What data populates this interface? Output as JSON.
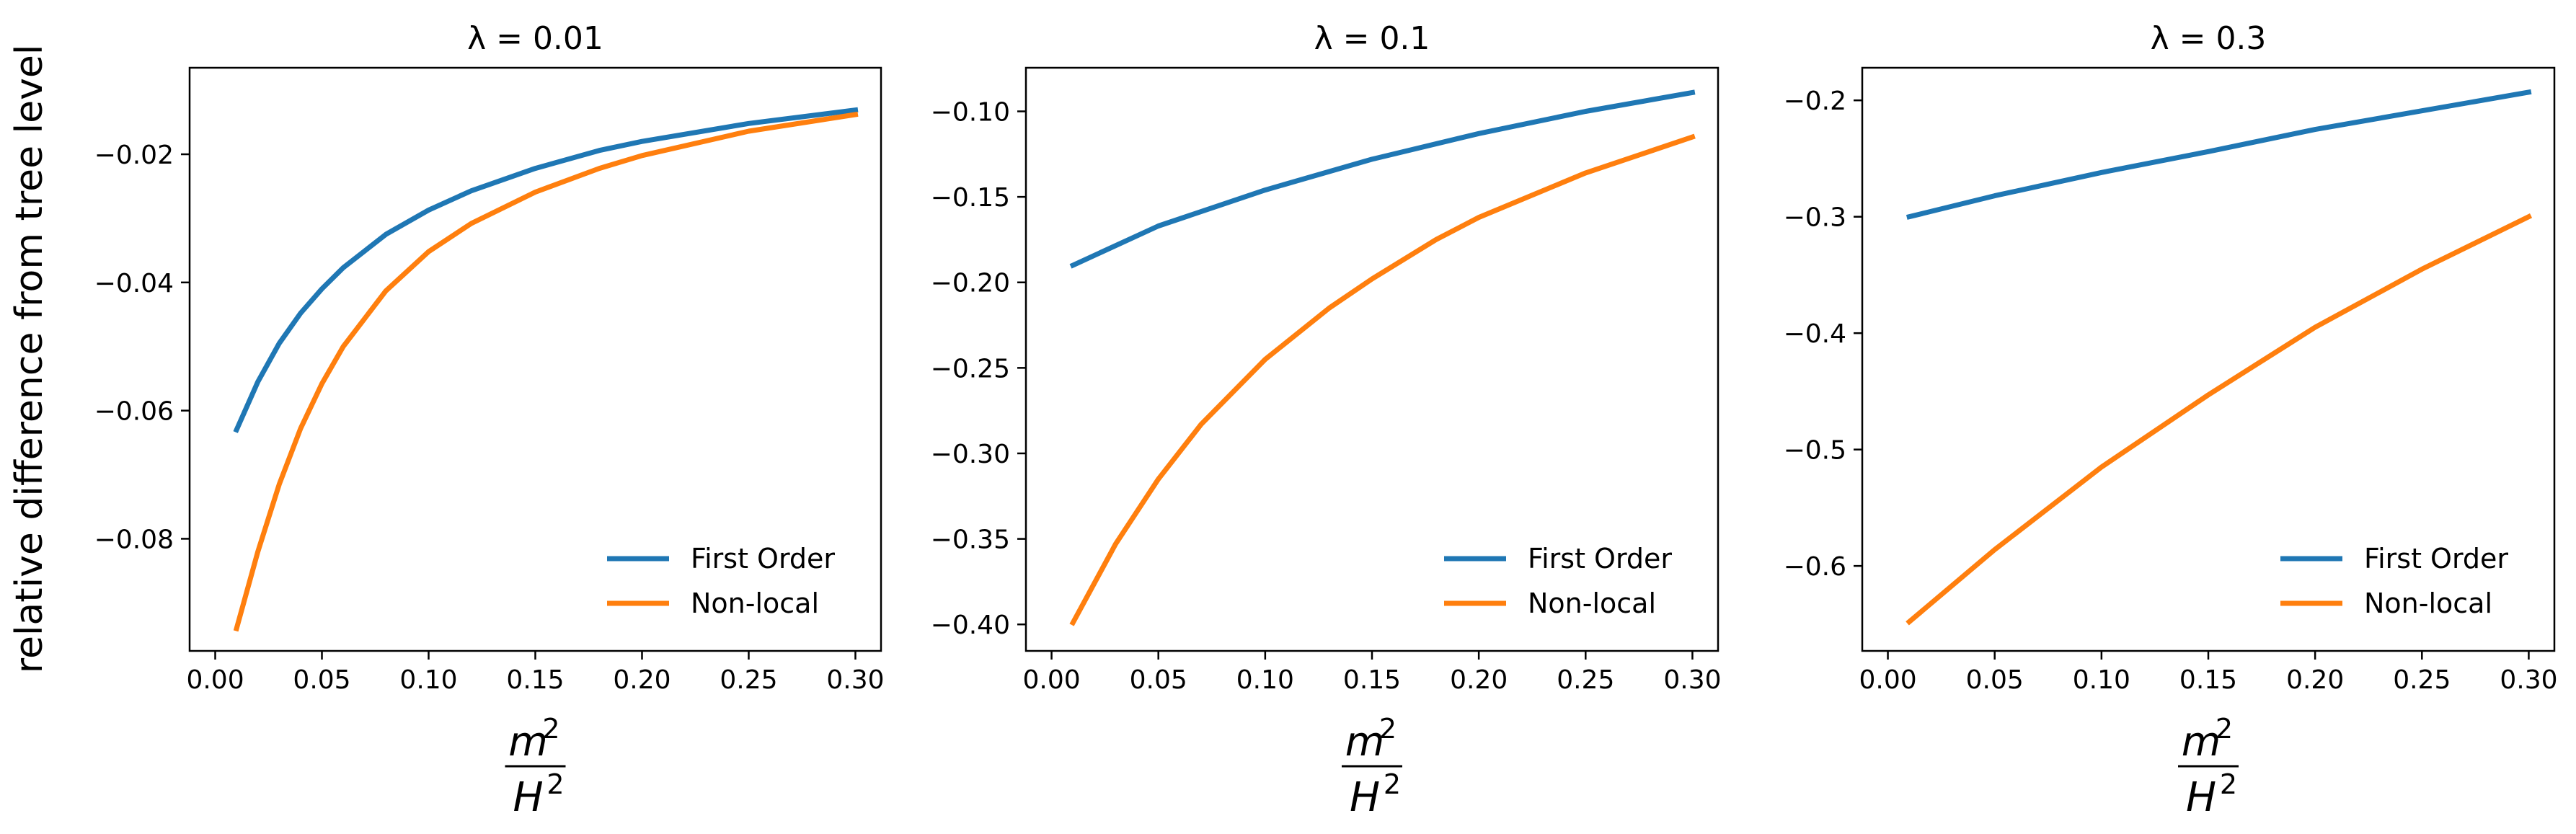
{
  "figure": {
    "ylabel": "relative difference from tree level",
    "xlabel": {
      "numerator": "m",
      "denominator": "H",
      "exponent": "2"
    },
    "colors": {
      "first_order": "#1f77b4",
      "non_local": "#ff7f0e",
      "axes": "#000000"
    }
  },
  "chart_data": [
    {
      "type": "line",
      "title": "λ = 0.01",
      "xlim": [
        -0.012,
        0.312
      ],
      "ylim": [
        -0.0975,
        -0.0065
      ],
      "xticks": [
        0.0,
        0.05,
        0.1,
        0.15,
        0.2,
        0.25,
        0.3
      ],
      "xtick_labels": [
        "0.00",
        "0.05",
        "0.10",
        "0.15",
        "0.20",
        "0.25",
        "0.30"
      ],
      "yticks": [
        -0.08,
        -0.06,
        -0.04,
        -0.02
      ],
      "ytick_labels": [
        "−0.08",
        "−0.06",
        "−0.04",
        "−0.02"
      ],
      "legend": "lower right",
      "series": [
        {
          "name": "First Order",
          "color": "#1f77b4",
          "x": [
            0.01,
            0.02,
            0.03,
            0.04,
            0.05,
            0.06,
            0.08,
            0.1,
            0.12,
            0.15,
            0.18,
            0.2,
            0.25,
            0.3
          ],
          "y": [
            -0.063,
            -0.0555,
            -0.0495,
            -0.0448,
            -0.041,
            -0.0377,
            -0.0325,
            -0.0287,
            -0.0257,
            -0.0222,
            -0.0194,
            -0.018,
            -0.0152,
            -0.0131
          ]
        },
        {
          "name": "Non-local",
          "color": "#ff7f0e",
          "x": [
            0.01,
            0.02,
            0.03,
            0.04,
            0.05,
            0.06,
            0.08,
            0.1,
            0.12,
            0.15,
            0.18,
            0.2,
            0.25,
            0.3
          ],
          "y": [
            -0.094,
            -0.082,
            -0.0715,
            -0.0628,
            -0.0558,
            -0.05,
            -0.0413,
            -0.0352,
            -0.0308,
            -0.0259,
            -0.0222,
            -0.0202,
            -0.0164,
            -0.0138
          ]
        }
      ]
    },
    {
      "type": "line",
      "title": "λ = 0.1",
      "xlim": [
        -0.012,
        0.312
      ],
      "ylim": [
        -0.4155,
        -0.0745
      ],
      "xticks": [
        0.0,
        0.05,
        0.1,
        0.15,
        0.2,
        0.25,
        0.3
      ],
      "xtick_labels": [
        "0.00",
        "0.05",
        "0.10",
        "0.15",
        "0.20",
        "0.25",
        "0.30"
      ],
      "yticks": [
        -0.4,
        -0.35,
        -0.3,
        -0.25,
        -0.2,
        -0.15,
        -0.1
      ],
      "ytick_labels": [
        "−0.40",
        "−0.35",
        "−0.30",
        "−0.25",
        "−0.20",
        "−0.15",
        "−0.10"
      ],
      "legend": "lower right",
      "series": [
        {
          "name": "First Order",
          "color": "#1f77b4",
          "x": [
            0.01,
            0.05,
            0.1,
            0.15,
            0.2,
            0.25,
            0.3
          ],
          "y": [
            -0.19,
            -0.167,
            -0.146,
            -0.128,
            -0.113,
            -0.1,
            -0.089
          ]
        },
        {
          "name": "Non-local",
          "color": "#ff7f0e",
          "x": [
            0.01,
            0.03,
            0.05,
            0.07,
            0.1,
            0.13,
            0.15,
            0.18,
            0.2,
            0.25,
            0.3
          ],
          "y": [
            -0.399,
            -0.353,
            -0.315,
            -0.283,
            -0.245,
            -0.215,
            -0.198,
            -0.175,
            -0.162,
            -0.136,
            -0.115
          ]
        }
      ]
    },
    {
      "type": "line",
      "title": "λ = 0.3",
      "xlim": [
        -0.012,
        0.312
      ],
      "ylim": [
        -0.673,
        -0.172
      ],
      "xticks": [
        0.0,
        0.05,
        0.1,
        0.15,
        0.2,
        0.25,
        0.3
      ],
      "xtick_labels": [
        "0.00",
        "0.05",
        "0.10",
        "0.15",
        "0.20",
        "0.25",
        "0.30"
      ],
      "yticks": [
        -0.6,
        -0.5,
        -0.4,
        -0.3,
        -0.2
      ],
      "ytick_labels": [
        "−0.6",
        "−0.5",
        "−0.4",
        "−0.3",
        "−0.2"
      ],
      "legend": "lower right",
      "series": [
        {
          "name": "First Order",
          "color": "#1f77b4",
          "x": [
            0.01,
            0.05,
            0.1,
            0.15,
            0.2,
            0.25,
            0.3
          ],
          "y": [
            -0.3,
            -0.282,
            -0.262,
            -0.244,
            -0.225,
            -0.209,
            -0.193
          ]
        },
        {
          "name": "Non-local",
          "color": "#ff7f0e",
          "x": [
            0.01,
            0.05,
            0.1,
            0.15,
            0.2,
            0.25,
            0.3
          ],
          "y": [
            -0.648,
            -0.586,
            -0.515,
            -0.453,
            -0.395,
            -0.345,
            -0.3
          ]
        }
      ]
    }
  ]
}
